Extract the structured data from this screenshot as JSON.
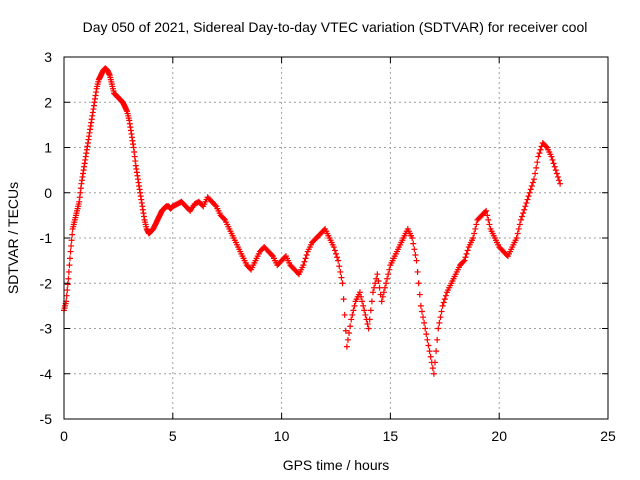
{
  "chart_data": {
    "type": "scatter",
    "title": "Day 050 of 2021, Sidereal Day-to-day VTEC variation (SDTVAR) for receiver cool",
    "xlabel": "GPS time / hours",
    "ylabel": "SDTVAR / TECUs",
    "xlim": [
      0,
      25
    ],
    "ylim": [
      -5,
      3
    ],
    "xticks": [
      "0",
      "5",
      "10",
      "15",
      "20",
      "25"
    ],
    "yticks": [
      "3",
      "2",
      "1",
      "0",
      "-1",
      "-2",
      "-3",
      "-4",
      "-5"
    ],
    "grid": true,
    "marker": "+",
    "color": "#ff0000",
    "series": [
      {
        "name": "SDTVAR",
        "x": [
          0.0,
          0.1,
          0.2,
          0.3,
          0.4,
          0.5,
          0.6,
          0.7,
          0.8,
          0.9,
          1.0,
          1.1,
          1.2,
          1.3,
          1.4,
          1.5,
          1.6,
          1.7,
          1.8,
          1.9,
          2.0,
          2.1,
          2.2,
          2.3,
          2.4,
          2.5,
          2.6,
          2.7,
          2.8,
          2.9,
          3.0,
          3.1,
          3.2,
          3.3,
          3.4,
          3.5,
          3.6,
          3.7,
          3.8,
          3.9,
          4.0,
          4.1,
          4.2,
          4.3,
          4.4,
          4.5,
          4.6,
          4.7,
          4.8,
          4.9,
          5.0,
          5.2,
          5.4,
          5.6,
          5.8,
          6.0,
          6.2,
          6.4,
          6.6,
          6.8,
          7.0,
          7.2,
          7.4,
          7.6,
          7.8,
          8.0,
          8.2,
          8.4,
          8.6,
          8.8,
          9.0,
          9.2,
          9.4,
          9.6,
          9.8,
          10.0,
          10.2,
          10.4,
          10.6,
          10.8,
          11.0,
          11.2,
          11.4,
          11.6,
          11.8,
          12.0,
          12.2,
          12.4,
          12.6,
          12.8,
          13.0,
          13.2,
          13.4,
          13.6,
          13.8,
          14.0,
          14.2,
          14.4,
          14.6,
          14.8,
          15.0,
          15.2,
          15.4,
          15.6,
          15.8,
          16.0,
          16.2,
          16.4,
          16.6,
          16.8,
          17.0,
          17.2,
          17.4,
          17.6,
          17.8,
          18.0,
          18.2,
          18.4,
          18.6,
          18.8,
          19.0,
          19.2,
          19.4,
          19.6,
          19.8,
          20.0,
          20.2,
          20.4,
          20.6,
          20.8,
          21.0,
          21.2,
          21.4,
          21.6,
          21.8,
          22.0,
          22.2,
          22.4,
          22.6,
          22.8
        ],
        "y": [
          -2.6,
          -2.4,
          -1.9,
          -1.3,
          -0.8,
          -0.6,
          -0.4,
          -0.2,
          0.2,
          0.5,
          0.8,
          1.1,
          1.4,
          1.7,
          2.0,
          2.3,
          2.5,
          2.6,
          2.7,
          2.75,
          2.7,
          2.6,
          2.4,
          2.2,
          2.15,
          2.1,
          2.05,
          2.0,
          1.9,
          1.8,
          1.6,
          1.3,
          1.0,
          0.6,
          0.3,
          0.0,
          -0.3,
          -0.6,
          -0.8,
          -0.9,
          -0.85,
          -0.8,
          -0.7,
          -0.6,
          -0.5,
          -0.4,
          -0.35,
          -0.3,
          -0.3,
          -0.35,
          -0.3,
          -0.25,
          -0.2,
          -0.3,
          -0.4,
          -0.25,
          -0.2,
          -0.3,
          -0.1,
          -0.2,
          -0.3,
          -0.5,
          -0.6,
          -0.8,
          -1.0,
          -1.2,
          -1.4,
          -1.6,
          -1.7,
          -1.5,
          -1.3,
          -1.2,
          -1.3,
          -1.4,
          -1.6,
          -1.5,
          -1.4,
          -1.6,
          -1.7,
          -1.8,
          -1.6,
          -1.3,
          -1.1,
          -1.0,
          -0.9,
          -0.8,
          -1.0,
          -1.2,
          -1.5,
          -2.0,
          -3.4,
          -2.8,
          -2.4,
          -2.2,
          -2.6,
          -3.0,
          -2.2,
          -1.8,
          -2.4,
          -2.0,
          -1.6,
          -1.4,
          -1.2,
          -1.0,
          -0.8,
          -1.0,
          -1.5,
          -2.5,
          -3.0,
          -3.5,
          -4.0,
          -3.0,
          -2.5,
          -2.2,
          -2.0,
          -1.8,
          -1.6,
          -1.5,
          -1.2,
          -1.0,
          -0.6,
          -0.5,
          -0.4,
          -0.8,
          -1.0,
          -1.2,
          -1.3,
          -1.4,
          -1.2,
          -1.0,
          -0.6,
          -0.3,
          0.0,
          0.3,
          0.8,
          1.1,
          1.0,
          0.8,
          0.5,
          0.2
        ]
      }
    ]
  }
}
